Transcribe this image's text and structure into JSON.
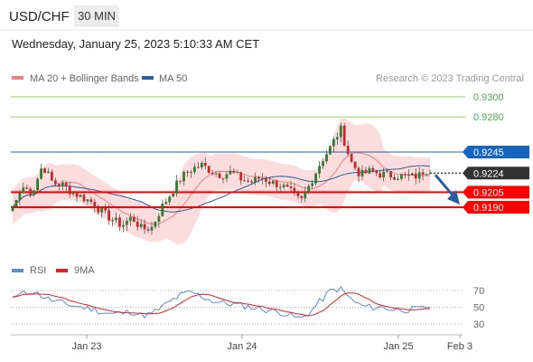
{
  "header": {
    "symbol": "USD/CHF",
    "interval": "30 MIN",
    "datetime": "Wednesday, January 25, 2023 5:10:33 AM CET"
  },
  "legend": [
    {
      "label": "MA 20 + Bollinger Bands",
      "color": "#f08080"
    },
    {
      "label": "MA 50",
      "color": "#2a5d9f"
    }
  ],
  "rsi_legend": [
    {
      "label": "RSI",
      "color": "#5b8bd6"
    },
    {
      "label": "9MA",
      "color": "#e02020"
    }
  ],
  "credit": "Research © 2023 Trading Central",
  "colors": {
    "up": "#2e7d32",
    "down": "#c62828",
    "support": "#ff0000",
    "resistance_target": "#9ccc65",
    "pivot": "#1565c0",
    "current": "#333333",
    "band_fill": "#fbd0d0"
  },
  "chart_data": [
    {
      "type": "candlestick",
      "price_range": [
        0.9155,
        0.9315
      ],
      "x_ticks": [
        "Jan 23",
        "Jan 24",
        "Jan 25",
        "Feb 3"
      ],
      "levels": [
        {
          "value": 0.93,
          "label": "0.9300",
          "kind": "target"
        },
        {
          "value": 0.928,
          "label": "0.9280",
          "kind": "target"
        },
        {
          "value": 0.9245,
          "label": "0.9245",
          "kind": "pivot"
        },
        {
          "value": 0.9224,
          "label": "0.9224",
          "kind": "current"
        },
        {
          "value": 0.9205,
          "label": "0.9205",
          "kind": "support"
        },
        {
          "value": 0.919,
          "label": "0.9190",
          "kind": "support"
        }
      ],
      "close_path": [
        0.919,
        0.921,
        0.9205,
        0.9232,
        0.9215,
        0.9212,
        0.9205,
        0.92,
        0.9195,
        0.9185,
        0.9178,
        0.9172,
        0.918,
        0.9168,
        0.917,
        0.919,
        0.9205,
        0.922,
        0.9228,
        0.9232,
        0.9226,
        0.9222,
        0.9225,
        0.9218,
        0.9215,
        0.922,
        0.9215,
        0.9212,
        0.9205,
        0.9195,
        0.9215,
        0.9235,
        0.925,
        0.9268,
        0.9236,
        0.9222,
        0.9226,
        0.9223,
        0.9222,
        0.9221,
        0.922,
        0.9222,
        0.9224
      ],
      "forecast": {
        "from": 0.9224,
        "to": 0.919
      },
      "series": [
        {
          "name": "MA 20 + Bollinger Bands"
        },
        {
          "name": "MA 50"
        }
      ]
    },
    {
      "type": "line",
      "y_ticks": [
        70,
        50,
        30
      ],
      "y_range": [
        25,
        80
      ],
      "rsi_path": [
        62,
        66,
        70,
        63,
        58,
        55,
        52,
        50,
        48,
        44,
        42,
        43,
        45,
        40,
        42,
        50,
        58,
        65,
        68,
        63,
        58,
        55,
        54,
        52,
        50,
        48,
        46,
        44,
        40,
        36,
        45,
        58,
        70,
        72,
        60,
        52,
        50,
        50,
        48,
        47,
        47,
        48,
        50
      ],
      "series": [
        {
          "name": "RSI"
        },
        {
          "name": "9MA"
        }
      ]
    }
  ]
}
